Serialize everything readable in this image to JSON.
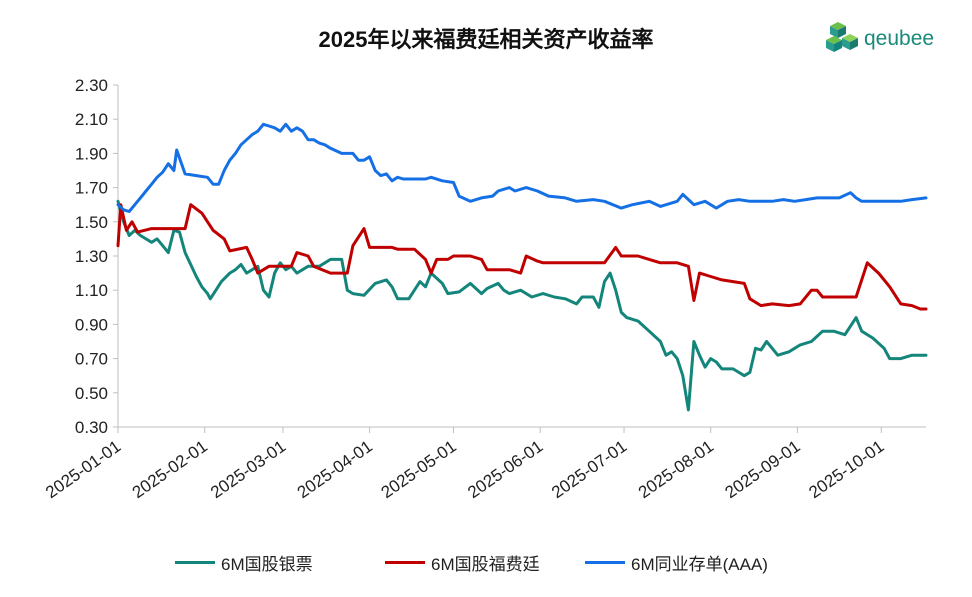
{
  "chart_data": {
    "type": "line",
    "title": "2025年以来福费廷相关资产收益率",
    "xlabel": "",
    "ylabel": "",
    "ylim": [
      0.3,
      2.3
    ],
    "yticks": [
      "0.30",
      "0.50",
      "0.70",
      "0.90",
      "1.10",
      "1.30",
      "1.50",
      "1.70",
      "1.90",
      "2.10",
      "2.30"
    ],
    "xlim_days": [
      0,
      289
    ],
    "xticks": [
      {
        "label": "2025-01-01",
        "day": 0
      },
      {
        "label": "2025-02-01",
        "day": 31
      },
      {
        "label": "2025-03-01",
        "day": 59
      },
      {
        "label": "2025-04-01",
        "day": 90
      },
      {
        "label": "2025-05-01",
        "day": 120
      },
      {
        "label": "2025-06-01",
        "day": 151
      },
      {
        "label": "2025-07-01",
        "day": 181
      },
      {
        "label": "2025-08-01",
        "day": 212
      },
      {
        "label": "2025-09-01",
        "day": 243
      },
      {
        "label": "2025-10-01",
        "day": 273
      }
    ],
    "series": [
      {
        "name": "6M国股银票",
        "color": "#13857a",
        "points": [
          [
            0,
            1.62
          ],
          [
            2,
            1.5
          ],
          [
            4,
            1.42
          ],
          [
            6,
            1.45
          ],
          [
            8,
            1.42
          ],
          [
            10,
            1.4
          ],
          [
            12,
            1.38
          ],
          [
            14,
            1.4
          ],
          [
            16,
            1.36
          ],
          [
            18,
            1.32
          ],
          [
            20,
            1.45
          ],
          [
            22,
            1.44
          ],
          [
            24,
            1.32
          ],
          [
            26,
            1.25
          ],
          [
            28,
            1.18
          ],
          [
            30,
            1.12
          ],
          [
            32,
            1.08
          ],
          [
            33,
            1.05
          ],
          [
            35,
            1.1
          ],
          [
            37,
            1.15
          ],
          [
            40,
            1.2
          ],
          [
            42,
            1.22
          ],
          [
            44,
            1.25
          ],
          [
            46,
            1.2
          ],
          [
            48,
            1.22
          ],
          [
            50,
            1.24
          ],
          [
            52,
            1.1
          ],
          [
            54,
            1.06
          ],
          [
            56,
            1.2
          ],
          [
            58,
            1.26
          ],
          [
            60,
            1.22
          ],
          [
            62,
            1.24
          ],
          [
            64,
            1.2
          ],
          [
            66,
            1.22
          ],
          [
            68,
            1.24
          ],
          [
            72,
            1.24
          ],
          [
            76,
            1.28
          ],
          [
            80,
            1.28
          ],
          [
            82,
            1.1
          ],
          [
            84,
            1.08
          ],
          [
            88,
            1.07
          ],
          [
            92,
            1.14
          ],
          [
            96,
            1.16
          ],
          [
            98,
            1.12
          ],
          [
            100,
            1.05
          ],
          [
            104,
            1.05
          ],
          [
            106,
            1.1
          ],
          [
            108,
            1.15
          ],
          [
            110,
            1.12
          ],
          [
            112,
            1.2
          ],
          [
            116,
            1.14
          ],
          [
            118,
            1.08
          ],
          [
            122,
            1.09
          ],
          [
            126,
            1.14
          ],
          [
            130,
            1.08
          ],
          [
            132,
            1.11
          ],
          [
            136,
            1.14
          ],
          [
            138,
            1.1
          ],
          [
            140,
            1.08
          ],
          [
            144,
            1.1
          ],
          [
            148,
            1.06
          ],
          [
            152,
            1.08
          ],
          [
            156,
            1.06
          ],
          [
            160,
            1.05
          ],
          [
            164,
            1.02
          ],
          [
            166,
            1.06
          ],
          [
            170,
            1.06
          ],
          [
            172,
            1.0
          ],
          [
            174,
            1.15
          ],
          [
            176,
            1.2
          ],
          [
            178,
            1.1
          ],
          [
            180,
            0.97
          ],
          [
            182,
            0.94
          ],
          [
            186,
            0.92
          ],
          [
            190,
            0.86
          ],
          [
            194,
            0.8
          ],
          [
            196,
            0.72
          ],
          [
            198,
            0.74
          ],
          [
            200,
            0.7
          ],
          [
            202,
            0.6
          ],
          [
            204,
            0.4
          ],
          [
            206,
            0.8
          ],
          [
            208,
            0.72
          ],
          [
            210,
            0.65
          ],
          [
            212,
            0.7
          ],
          [
            214,
            0.68
          ],
          [
            216,
            0.64
          ],
          [
            220,
            0.64
          ],
          [
            224,
            0.6
          ],
          [
            226,
            0.62
          ],
          [
            228,
            0.76
          ],
          [
            230,
            0.75
          ],
          [
            232,
            0.8
          ],
          [
            236,
            0.72
          ],
          [
            240,
            0.74
          ],
          [
            244,
            0.78
          ],
          [
            248,
            0.8
          ],
          [
            252,
            0.86
          ],
          [
            256,
            0.86
          ],
          [
            260,
            0.84
          ],
          [
            264,
            0.94
          ],
          [
            266,
            0.86
          ],
          [
            270,
            0.82
          ],
          [
            274,
            0.76
          ],
          [
            276,
            0.7
          ],
          [
            280,
            0.7
          ],
          [
            284,
            0.72
          ],
          [
            289,
            0.72
          ]
        ]
      },
      {
        "name": "6M国股福费廷",
        "color": "#c00000",
        "points": [
          [
            0,
            1.36
          ],
          [
            1,
            1.6
          ],
          [
            3,
            1.45
          ],
          [
            5,
            1.5
          ],
          [
            7,
            1.44
          ],
          [
            12,
            1.46
          ],
          [
            18,
            1.46
          ],
          [
            24,
            1.46
          ],
          [
            26,
            1.6
          ],
          [
            30,
            1.55
          ],
          [
            34,
            1.45
          ],
          [
            38,
            1.4
          ],
          [
            40,
            1.33
          ],
          [
            46,
            1.35
          ],
          [
            48,
            1.28
          ],
          [
            50,
            1.2
          ],
          [
            52,
            1.22
          ],
          [
            54,
            1.24
          ],
          [
            62,
            1.24
          ],
          [
            64,
            1.32
          ],
          [
            68,
            1.3
          ],
          [
            70,
            1.24
          ],
          [
            76,
            1.2
          ],
          [
            80,
            1.2
          ],
          [
            82,
            1.2
          ],
          [
            84,
            1.36
          ],
          [
            88,
            1.46
          ],
          [
            90,
            1.35
          ],
          [
            98,
            1.35
          ],
          [
            100,
            1.34
          ],
          [
            106,
            1.34
          ],
          [
            110,
            1.28
          ],
          [
            112,
            1.2
          ],
          [
            114,
            1.28
          ],
          [
            118,
            1.28
          ],
          [
            120,
            1.3
          ],
          [
            126,
            1.3
          ],
          [
            130,
            1.28
          ],
          [
            132,
            1.22
          ],
          [
            136,
            1.22
          ],
          [
            140,
            1.22
          ],
          [
            144,
            1.2
          ],
          [
            146,
            1.3
          ],
          [
            150,
            1.27
          ],
          [
            152,
            1.26
          ],
          [
            160,
            1.26
          ],
          [
            170,
            1.26
          ],
          [
            174,
            1.26
          ],
          [
            178,
            1.35
          ],
          [
            180,
            1.3
          ],
          [
            186,
            1.3
          ],
          [
            190,
            1.28
          ],
          [
            194,
            1.26
          ],
          [
            200,
            1.26
          ],
          [
            204,
            1.24
          ],
          [
            206,
            1.04
          ],
          [
            208,
            1.2
          ],
          [
            212,
            1.18
          ],
          [
            216,
            1.16
          ],
          [
            224,
            1.14
          ],
          [
            226,
            1.05
          ],
          [
            230,
            1.01
          ],
          [
            234,
            1.02
          ],
          [
            240,
            1.01
          ],
          [
            244,
            1.02
          ],
          [
            248,
            1.1
          ],
          [
            250,
            1.1
          ],
          [
            252,
            1.06
          ],
          [
            258,
            1.06
          ],
          [
            264,
            1.06
          ],
          [
            268,
            1.26
          ],
          [
            272,
            1.2
          ],
          [
            276,
            1.12
          ],
          [
            280,
            1.02
          ],
          [
            284,
            1.01
          ],
          [
            287,
            0.99
          ],
          [
            289,
            0.99
          ]
        ]
      },
      {
        "name": "6M同业存单(AAA)",
        "color": "#1570e6",
        "points": [
          [
            0,
            1.6
          ],
          [
            2,
            1.57
          ],
          [
            4,
            1.56
          ],
          [
            6,
            1.6
          ],
          [
            8,
            1.64
          ],
          [
            10,
            1.68
          ],
          [
            12,
            1.72
          ],
          [
            14,
            1.76
          ],
          [
            16,
            1.79
          ],
          [
            18,
            1.84
          ],
          [
            20,
            1.8
          ],
          [
            21,
            1.92
          ],
          [
            24,
            1.78
          ],
          [
            28,
            1.77
          ],
          [
            32,
            1.76
          ],
          [
            34,
            1.72
          ],
          [
            36,
            1.72
          ],
          [
            38,
            1.8
          ],
          [
            40,
            1.86
          ],
          [
            42,
            1.9
          ],
          [
            44,
            1.95
          ],
          [
            46,
            1.98
          ],
          [
            48,
            2.01
          ],
          [
            50,
            2.03
          ],
          [
            52,
            2.07
          ],
          [
            54,
            2.06
          ],
          [
            56,
            2.05
          ],
          [
            58,
            2.03
          ],
          [
            60,
            2.07
          ],
          [
            62,
            2.03
          ],
          [
            64,
            2.05
          ],
          [
            66,
            2.03
          ],
          [
            68,
            1.98
          ],
          [
            70,
            1.98
          ],
          [
            72,
            1.96
          ],
          [
            74,
            1.95
          ],
          [
            76,
            1.93
          ],
          [
            80,
            1.9
          ],
          [
            84,
            1.9
          ],
          [
            86,
            1.86
          ],
          [
            88,
            1.86
          ],
          [
            90,
            1.88
          ],
          [
            92,
            1.8
          ],
          [
            94,
            1.77
          ],
          [
            96,
            1.78
          ],
          [
            98,
            1.74
          ],
          [
            100,
            1.76
          ],
          [
            102,
            1.75
          ],
          [
            106,
            1.75
          ],
          [
            110,
            1.75
          ],
          [
            112,
            1.76
          ],
          [
            116,
            1.74
          ],
          [
            120,
            1.73
          ],
          [
            122,
            1.65
          ],
          [
            126,
            1.62
          ],
          [
            130,
            1.64
          ],
          [
            134,
            1.65
          ],
          [
            136,
            1.68
          ],
          [
            140,
            1.7
          ],
          [
            142,
            1.68
          ],
          [
            146,
            1.7
          ],
          [
            150,
            1.68
          ],
          [
            154,
            1.65
          ],
          [
            160,
            1.64
          ],
          [
            164,
            1.62
          ],
          [
            170,
            1.63
          ],
          [
            174,
            1.62
          ],
          [
            180,
            1.58
          ],
          [
            184,
            1.6
          ],
          [
            190,
            1.62
          ],
          [
            194,
            1.59
          ],
          [
            200,
            1.62
          ],
          [
            202,
            1.66
          ],
          [
            206,
            1.6
          ],
          [
            210,
            1.62
          ],
          [
            214,
            1.58
          ],
          [
            218,
            1.62
          ],
          [
            222,
            1.63
          ],
          [
            226,
            1.62
          ],
          [
            230,
            1.62
          ],
          [
            234,
            1.62
          ],
          [
            238,
            1.63
          ],
          [
            242,
            1.62
          ],
          [
            246,
            1.63
          ],
          [
            250,
            1.64
          ],
          [
            254,
            1.64
          ],
          [
            258,
            1.64
          ],
          [
            262,
            1.67
          ],
          [
            264,
            1.64
          ],
          [
            266,
            1.62
          ],
          [
            270,
            1.62
          ],
          [
            276,
            1.62
          ],
          [
            280,
            1.62
          ],
          [
            284,
            1.63
          ],
          [
            289,
            1.64
          ]
        ]
      }
    ]
  },
  "logo": {
    "text": "qeubee",
    "name": "qeubee-logo"
  }
}
